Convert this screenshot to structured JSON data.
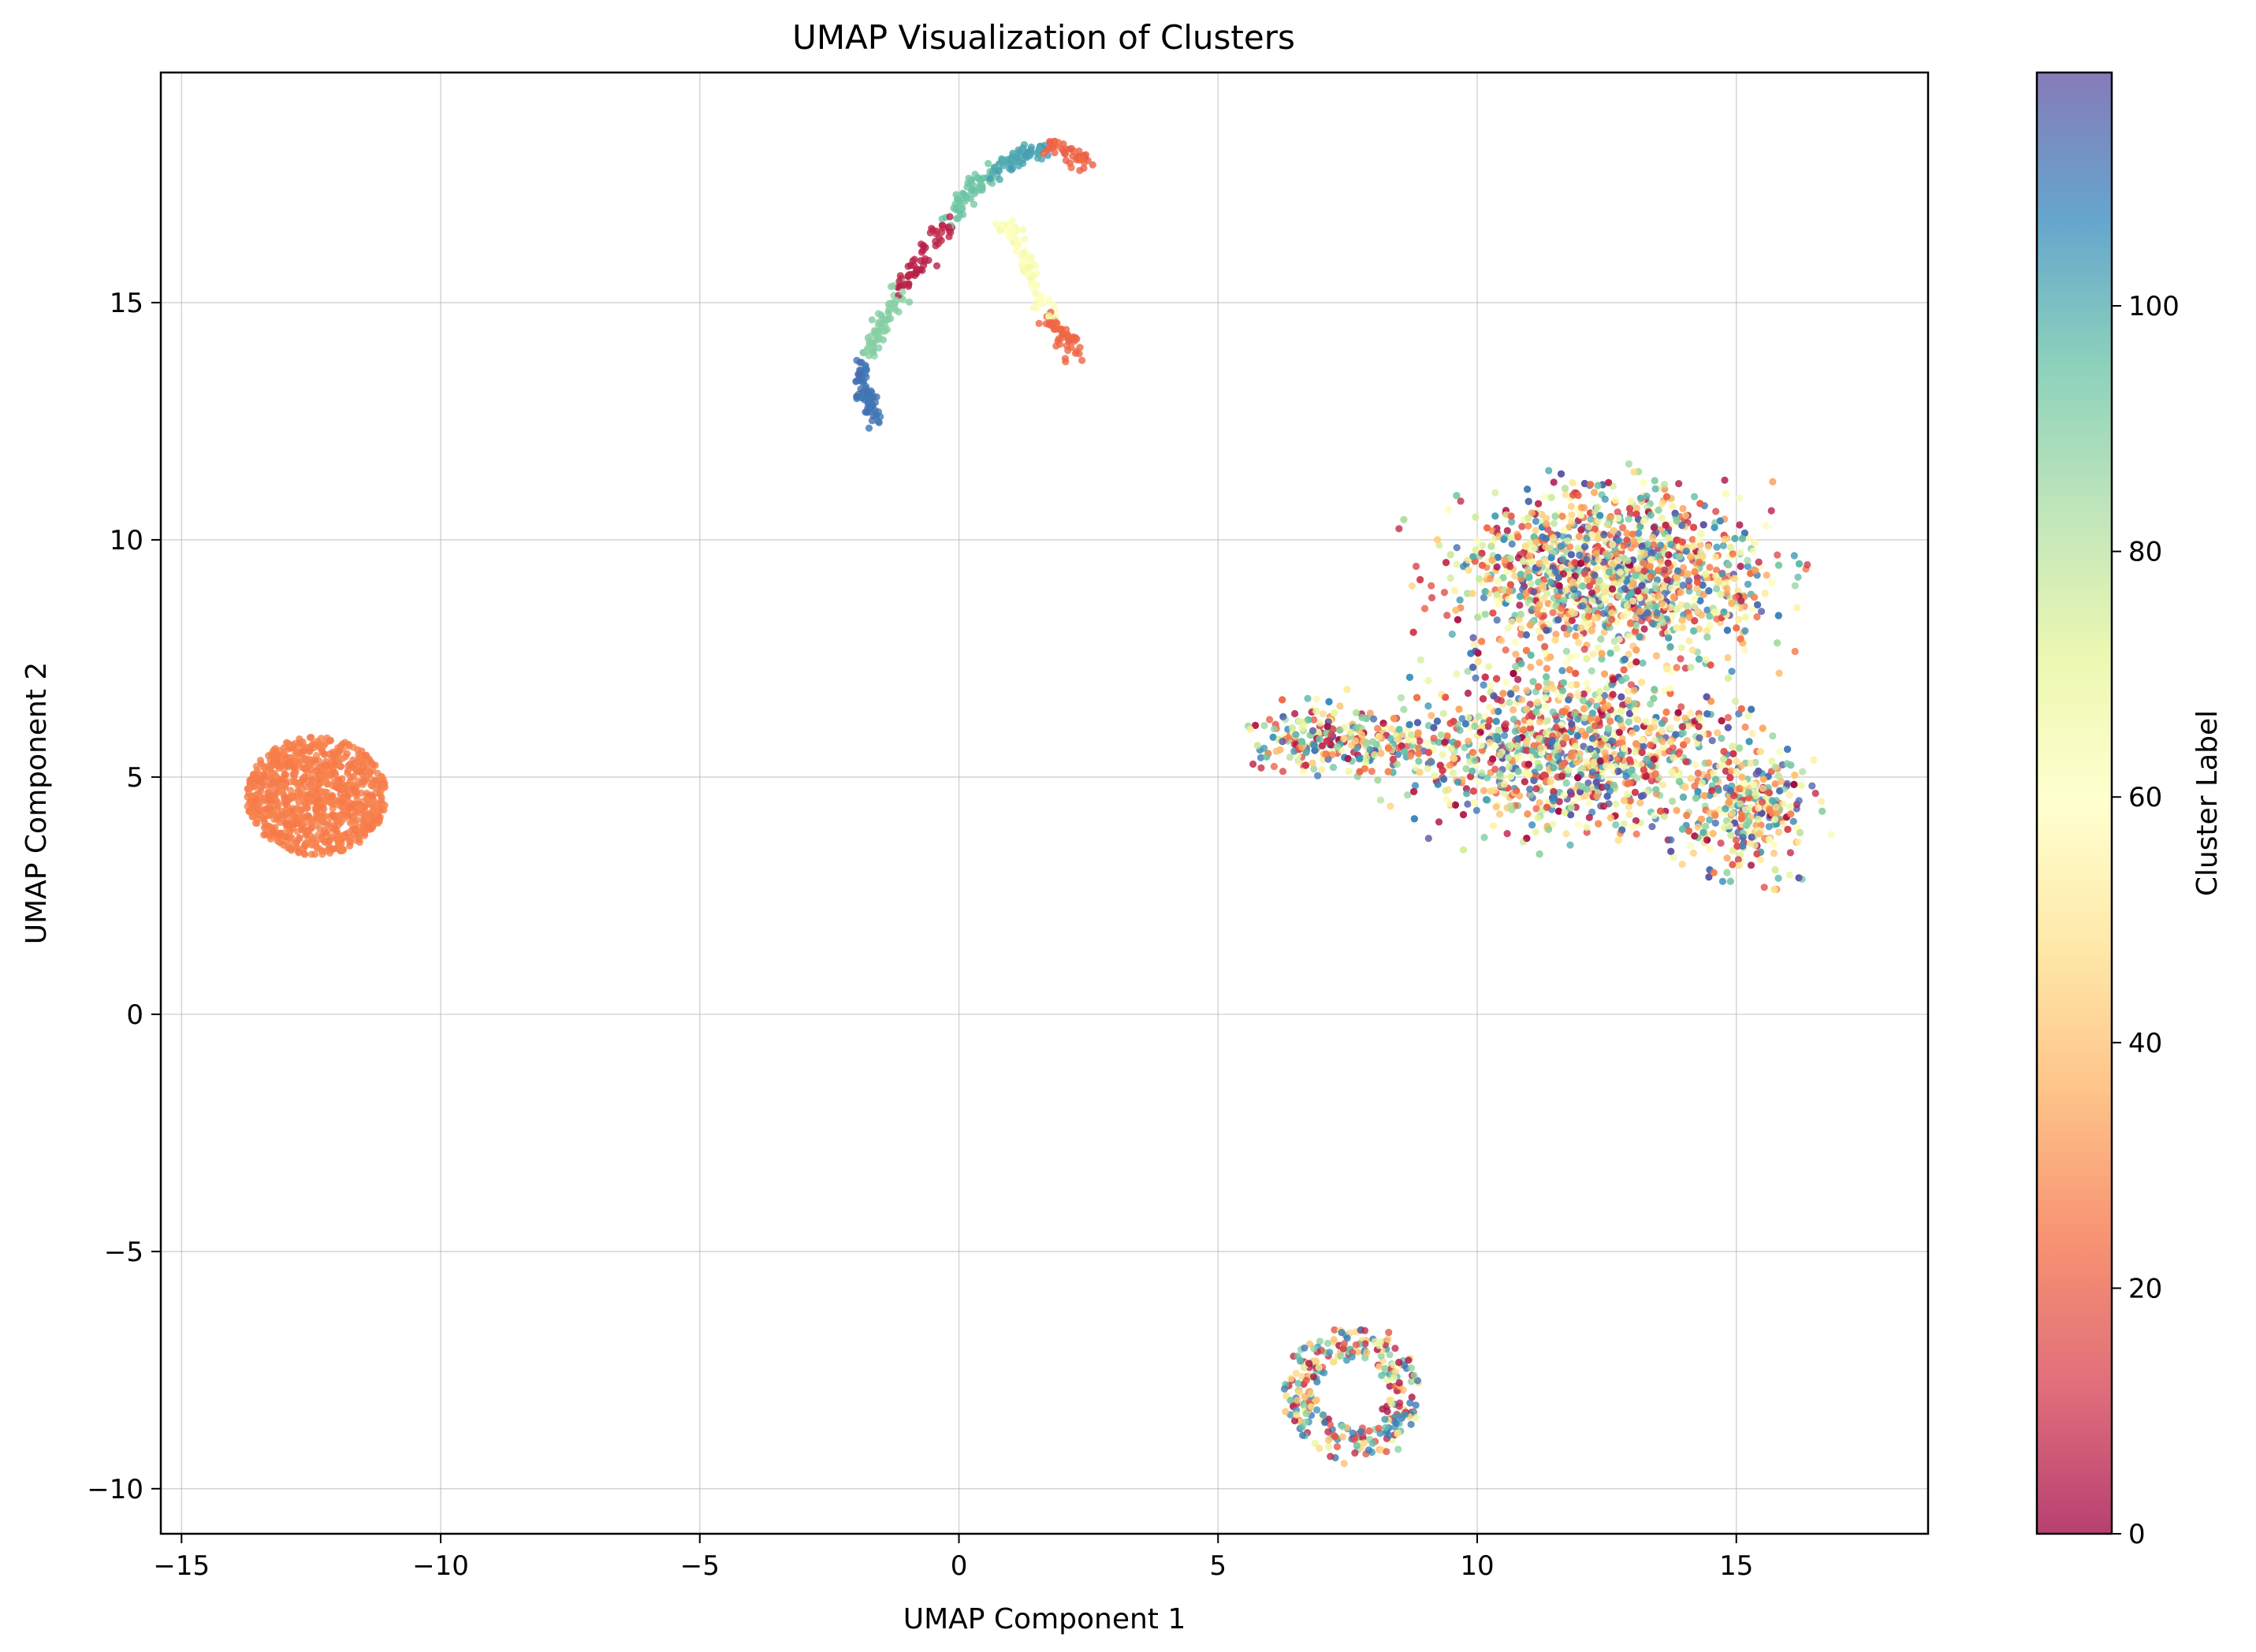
{
  "chart_data": {
    "type": "scatter",
    "title": "UMAP Visualization of Clusters",
    "xlabel": "UMAP Component 1",
    "ylabel": "UMAP Component 2",
    "xlim": [
      -15.4,
      18.7
    ],
    "ylim": [
      -10.95,
      19.85
    ],
    "xticks": [
      -15,
      -10,
      -5,
      0,
      5,
      10,
      15
    ],
    "yticks": [
      -10,
      -5,
      0,
      5,
      10,
      15
    ],
    "grid": true,
    "colormap": "Spectral",
    "colorbar": {
      "label": "Cluster Label",
      "range": [
        0,
        119
      ],
      "ticks": [
        0,
        20,
        40,
        60,
        80,
        100
      ],
      "stops": [
        "#9e0142",
        "#d53e4f",
        "#f46d43",
        "#fdae61",
        "#fee08b",
        "#ffffbf",
        "#e6f598",
        "#abdda4",
        "#66c2a5",
        "#3288bd",
        "#5e4fa2"
      ],
      "alpha": 0.7
    },
    "groups": [
      {
        "region": "left-blob",
        "center": [
          -12.4,
          4.6
        ],
        "radius": [
          1.35,
          1.25
        ],
        "labels": [
          26,
          27,
          28
        ],
        "approx_points": 900
      },
      {
        "region": "upper-arc",
        "path": [
          [
            -1.6,
            12.4
          ],
          [
            -1.9,
            13.5
          ],
          [
            -1.5,
            14.6
          ],
          [
            -0.9,
            15.6
          ],
          [
            -0.2,
            16.7
          ],
          [
            0.4,
            17.6
          ],
          [
            1.2,
            18.1
          ],
          [
            1.9,
            18.3
          ],
          [
            2.5,
            17.9
          ]
        ],
        "branch": [
          [
            0.8,
            16.7
          ],
          [
            1.3,
            16.0
          ],
          [
            1.5,
            15.2
          ],
          [
            1.8,
            14.6
          ],
          [
            2.3,
            13.9
          ]
        ],
        "labels": [
          5,
          10,
          22,
          60,
          62,
          78,
          82,
          90,
          92,
          98,
          105,
          110
        ],
        "approx_points": 500
      },
      {
        "region": "right-mass",
        "center": [
          12.8,
          7.5
        ],
        "spread": [
          2.8,
          2.2
        ],
        "x_range": [
          5.5,
          17.2
        ],
        "y_range": [
          2.3,
          11.8
        ],
        "labels_range": [
          0,
          119
        ],
        "approx_points": 3800
      },
      {
        "region": "bottom-small",
        "center": [
          7.6,
          -8.0
        ],
        "spread": [
          0.7,
          0.8
        ],
        "labels": [
          3,
          8,
          18,
          40,
          46,
          70,
          88,
          96,
          104,
          110
        ],
        "approx_points": 300
      }
    ]
  }
}
